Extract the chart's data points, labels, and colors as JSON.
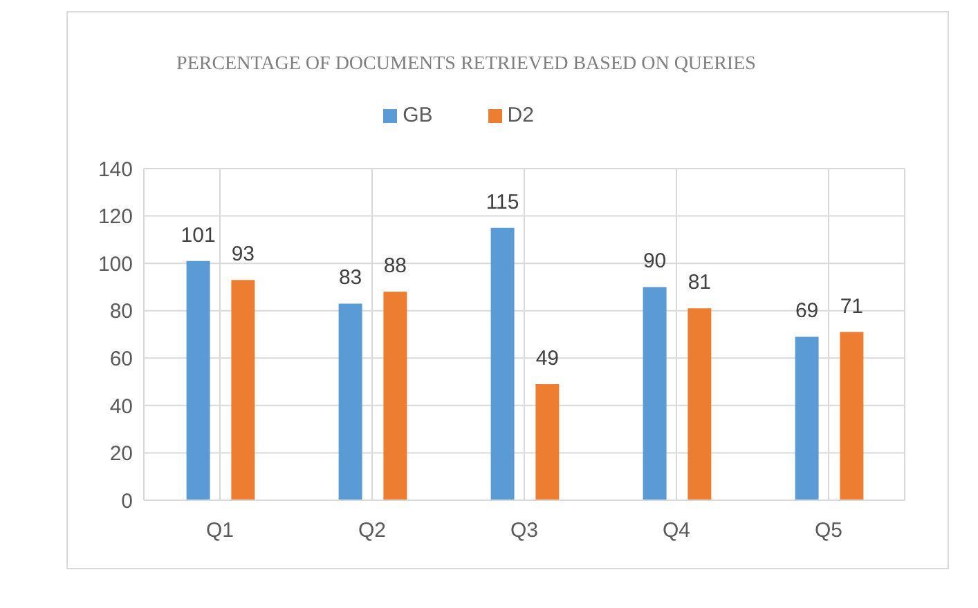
{
  "chart_data": {
    "type": "bar",
    "title": "PERCENTAGE OF DOCUMENTS RETRIEVED BASED ON QUERIES",
    "categories": [
      "Q1",
      "Q2",
      "Q3",
      "Q4",
      "Q5"
    ],
    "series": [
      {
        "name": "GB",
        "color": "#5b9bd5",
        "values": [
          101,
          83,
          115,
          90,
          69
        ]
      },
      {
        "name": "D2",
        "color": "#ed7d31",
        "values": [
          93,
          88,
          49,
          81,
          71
        ]
      }
    ],
    "ylim": [
      0,
      140
    ],
    "yticks": [
      0,
      20,
      40,
      60,
      80,
      100,
      120,
      140
    ],
    "grid": true,
    "legend": "top",
    "data_labels": true
  }
}
